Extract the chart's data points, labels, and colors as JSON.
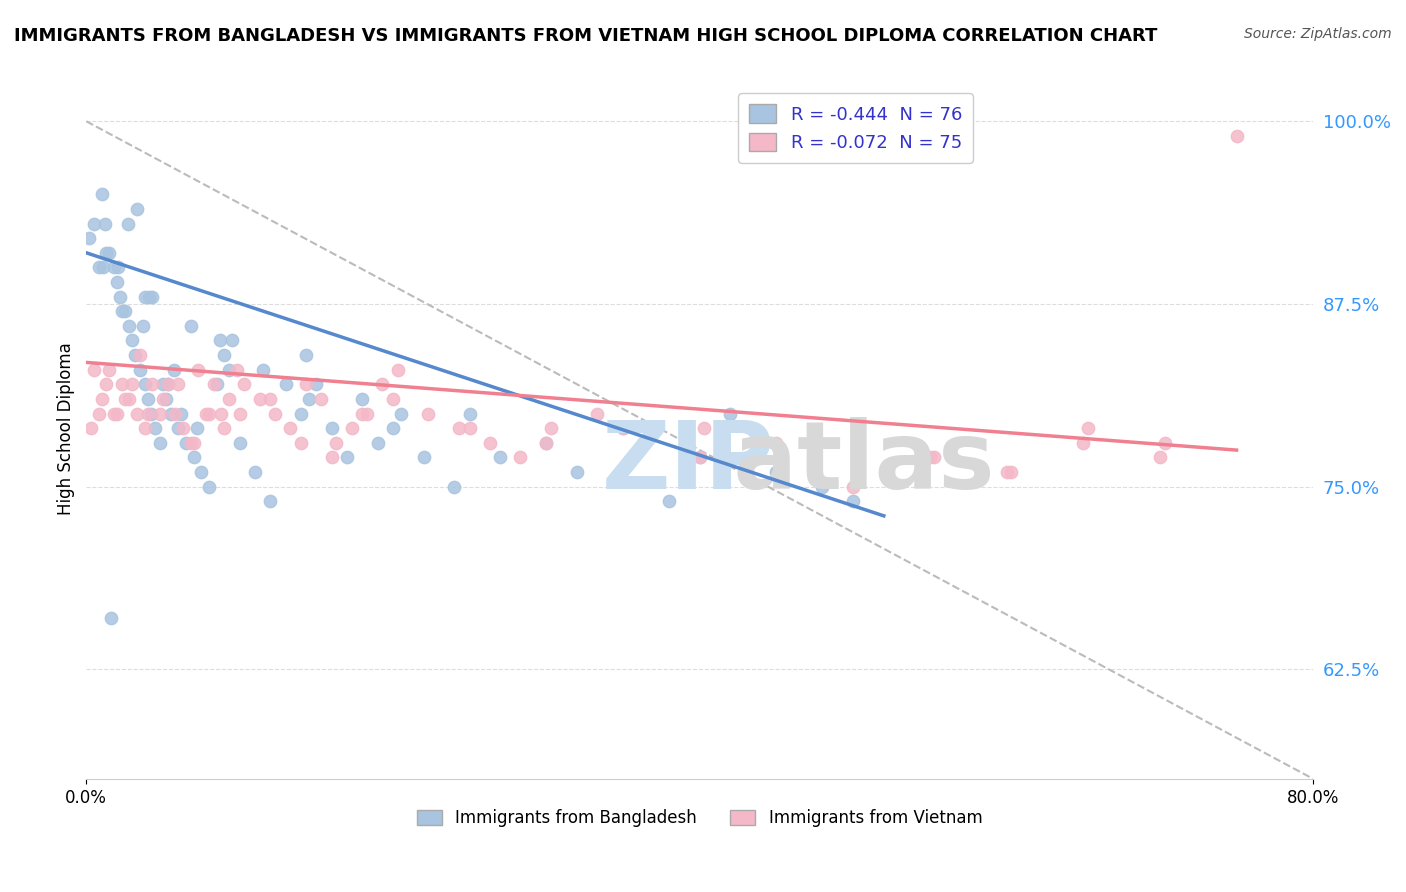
{
  "title": "IMMIGRANTS FROM BANGLADESH VS IMMIGRANTS FROM VIETNAM HIGH SCHOOL DIPLOMA CORRELATION CHART",
  "source": "Source: ZipAtlas.com",
  "ylabel": "High School Diploma",
  "y_ticks": [
    62.5,
    75.0,
    87.5,
    100.0
  ],
  "series1_color": "#a8c4e0",
  "series2_color": "#f4b8c8",
  "regression1_color": "#5588cc",
  "regression2_color": "#f08090",
  "dashed_color": "#bbbbbb",
  "legend_entry1": "R = -0.444  N = 76",
  "legend_entry2": "R = -0.072  N = 75",
  "bottom_label1": "Immigrants from Bangladesh",
  "bottom_label2": "Immigrants from Vietnam",
  "bangladesh_x": [
    0.2,
    0.5,
    1.0,
    1.2,
    1.5,
    1.8,
    2.0,
    2.2,
    2.5,
    2.8,
    3.0,
    3.2,
    3.5,
    3.8,
    4.0,
    4.2,
    4.5,
    4.8,
    5.0,
    5.5,
    6.0,
    6.5,
    7.0,
    7.5,
    8.0,
    8.5,
    9.0,
    9.5,
    10.0,
    11.0,
    12.0,
    13.0,
    14.0,
    15.0,
    16.0,
    17.0,
    18.0,
    19.0,
    20.0,
    22.0,
    24.0,
    25.0,
    27.0,
    30.0,
    32.0,
    35.0,
    38.0,
    40.0,
    42.0,
    45.0,
    48.0,
    50.0,
    5.2,
    6.2,
    7.2,
    3.3,
    2.3,
    1.3,
    0.8,
    4.3,
    3.7,
    2.7,
    5.7,
    8.7,
    11.5,
    14.5,
    20.5,
    1.6,
    5.3,
    9.3,
    14.3,
    1.1,
    3.8,
    6.8,
    2.1,
    4.1
  ],
  "bangladesh_y": [
    92,
    93,
    95,
    93,
    91,
    90,
    89,
    88,
    87,
    86,
    85,
    84,
    83,
    82,
    81,
    80,
    79,
    78,
    82,
    80,
    79,
    78,
    77,
    76,
    75,
    82,
    84,
    85,
    78,
    76,
    74,
    82,
    80,
    82,
    79,
    77,
    81,
    78,
    79,
    77,
    75,
    80,
    77,
    78,
    76,
    79,
    74,
    77,
    80,
    76,
    75,
    74,
    81,
    80,
    79,
    94,
    87,
    91,
    90,
    88,
    86,
    93,
    83,
    85,
    83,
    81,
    80,
    66,
    82,
    83,
    84,
    90,
    88,
    86,
    90,
    88
  ],
  "vietnam_x": [
    0.3,
    0.8,
    1.3,
    1.8,
    2.3,
    2.8,
    3.3,
    3.8,
    4.3,
    4.8,
    5.3,
    5.8,
    6.3,
    6.8,
    7.3,
    7.8,
    8.3,
    8.8,
    9.3,
    9.8,
    10.3,
    11.3,
    12.3,
    13.3,
    14.3,
    15.3,
    16.3,
    17.3,
    18.3,
    19.3,
    20.3,
    22.3,
    24.3,
    26.3,
    28.3,
    30.3,
    33.3,
    36.3,
    40.3,
    45.3,
    50.3,
    55.3,
    60.3,
    65.3,
    70.3,
    1.0,
    2.0,
    3.0,
    4.0,
    5.0,
    6.0,
    7.0,
    8.0,
    9.0,
    10.0,
    12.0,
    14.0,
    16.0,
    18.0,
    20.0,
    25.0,
    30.0,
    35.0,
    40.0,
    45.0,
    50.0,
    55.0,
    60.0,
    65.0,
    70.0,
    75.0,
    0.5,
    1.5,
    2.5,
    3.5
  ],
  "vietnam_y": [
    79,
    80,
    82,
    80,
    82,
    81,
    80,
    79,
    82,
    80,
    82,
    80,
    79,
    78,
    83,
    80,
    82,
    80,
    81,
    83,
    82,
    81,
    80,
    79,
    82,
    81,
    78,
    79,
    80,
    82,
    83,
    80,
    79,
    78,
    77,
    79,
    80,
    78,
    79,
    77,
    78,
    77,
    76,
    79,
    78,
    81,
    80,
    82,
    80,
    81,
    82,
    78,
    80,
    79,
    80,
    81,
    78,
    77,
    80,
    81,
    79,
    78,
    79,
    77,
    78,
    75,
    77,
    76,
    78,
    77,
    99,
    83,
    83,
    81,
    84
  ],
  "x_min": 0.0,
  "x_max": 80.0,
  "y_min": 55.0,
  "y_max": 103.0,
  "reg1_x0": 0.0,
  "reg1_y0": 91.0,
  "reg1_x1": 52.0,
  "reg1_y1": 73.0,
  "reg2_x0": 0.0,
  "reg2_y0": 83.5,
  "reg2_x1": 75.0,
  "reg2_y1": 77.5,
  "dash_x0": 0.0,
  "dash_y0": 100.0,
  "dash_x1": 80.0,
  "dash_y1": 55.0
}
